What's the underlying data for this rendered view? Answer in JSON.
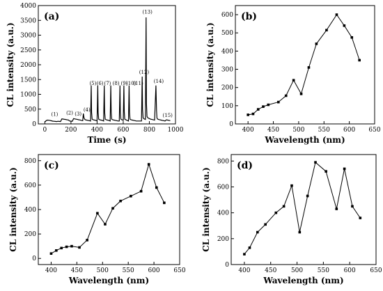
{
  "chart_data": [
    {
      "type": "line",
      "panel_label": "(a)",
      "xlabel": "Time (s)",
      "ylabel": "CL intensity (a.u.)",
      "xlim": [
        -50,
        1000
      ],
      "ylim": [
        0,
        4000
      ],
      "xticks": [
        0,
        200,
        400,
        600,
        800,
        1000
      ],
      "yticks": [
        0,
        500,
        1000,
        1500,
        2000,
        2500,
        3000,
        3500,
        4000
      ],
      "x": [
        0,
        10,
        20,
        30,
        40,
        50,
        60,
        70,
        80,
        90,
        100,
        110,
        120,
        130,
        140,
        150,
        160,
        170,
        180,
        190,
        200,
        210,
        220,
        230,
        240,
        250,
        260,
        270,
        280,
        290,
        295,
        300,
        305,
        310,
        320,
        330,
        340,
        350,
        355,
        358,
        362,
        370,
        380,
        390,
        400,
        405,
        408,
        412,
        420,
        430,
        440,
        450,
        455,
        458,
        462,
        470,
        480,
        490,
        500,
        505,
        508,
        512,
        520,
        530,
        540,
        550,
        560,
        570,
        575,
        578,
        582,
        590,
        600,
        605,
        608,
        612,
        620,
        630,
        640,
        645,
        648,
        652,
        660,
        670,
        680,
        690,
        700,
        710,
        720,
        730,
        740,
        745,
        748,
        752,
        760,
        770,
        775,
        778,
        782,
        790,
        800,
        810,
        820,
        830,
        840,
        850,
        855,
        858,
        862,
        870,
        880,
        890,
        900,
        910,
        920,
        930,
        940,
        950,
        960
      ],
      "values": [
        60,
        110,
        130,
        125,
        115,
        105,
        95,
        90,
        85,
        80,
        90,
        85,
        80,
        170,
        165,
        155,
        150,
        140,
        135,
        100,
        95,
        90,
        180,
        170,
        160,
        150,
        140,
        135,
        120,
        110,
        350,
        200,
        160,
        140,
        130,
        120,
        110,
        100,
        1300,
        400,
        160,
        140,
        130,
        120,
        100,
        1300,
        400,
        160,
        140,
        130,
        120,
        100,
        1300,
        400,
        160,
        140,
        130,
        120,
        100,
        1300,
        400,
        160,
        140,
        130,
        120,
        110,
        100,
        100,
        1300,
        400,
        160,
        140,
        120,
        1300,
        400,
        160,
        140,
        120,
        100,
        1300,
        400,
        160,
        140,
        130,
        120,
        110,
        100,
        100,
        100,
        100,
        100,
        1600,
        500,
        200,
        170,
        150,
        3600,
        700,
        250,
        200,
        180,
        160,
        150,
        140,
        130,
        1300,
        450,
        200,
        170,
        150,
        140,
        130,
        120,
        110,
        100,
        140,
        130,
        120,
        110
      ],
      "annotations": [
        {
          "text": "(1)",
          "x": 75,
          "y": 270
        },
        {
          "text": "(2)",
          "x": 190,
          "y": 320
        },
        {
          "text": "(3)",
          "x": 255,
          "y": 280
        },
        {
          "text": "(4)",
          "x": 322,
          "y": 420
        },
        {
          "text": "(5)",
          "x": 368,
          "y": 1320
        },
        {
          "text": "(6)",
          "x": 422,
          "y": 1320
        },
        {
          "text": "(7)",
          "x": 480,
          "y": 1320
        },
        {
          "text": "(8)",
          "x": 545,
          "y": 1320
        },
        {
          "text": "(9)",
          "x": 608,
          "y": 1320
        },
        {
          "text": "(10)",
          "x": 660,
          "y": 1320
        },
        {
          "text": "(11)",
          "x": 715,
          "y": 1320
        },
        {
          "text": "(12)",
          "x": 760,
          "y": 1690
        },
        {
          "text": "(13)",
          "x": 785,
          "y": 3730
        },
        {
          "text": "(14)",
          "x": 872,
          "y": 1390
        },
        {
          "text": "(15)",
          "x": 940,
          "y": 230
        }
      ]
    },
    {
      "type": "line",
      "panel_label": "(b)",
      "xlabel": "Wavelength (nm)",
      "ylabel": "CL intensity (a.u.)",
      "xlim": [
        375,
        650
      ],
      "ylim": [
        0,
        650
      ],
      "xticks": [
        400,
        450,
        500,
        550,
        600,
        650
      ],
      "yticks": [
        0,
        100,
        200,
        300,
        400,
        500,
        600
      ],
      "x": [
        400,
        410,
        420,
        430,
        440,
        460,
        475,
        490,
        505,
        520,
        535,
        555,
        575,
        590,
        605,
        620
      ],
      "values": [
        50,
        55,
        80,
        95,
        105,
        120,
        155,
        240,
        165,
        310,
        440,
        515,
        600,
        540,
        475,
        350
      ]
    },
    {
      "type": "line",
      "panel_label": "(c)",
      "xlabel": "Wavelength (nm)",
      "ylabel": "CL intensity (a.u.)",
      "xlim": [
        375,
        650
      ],
      "ylim": [
        -50,
        850
      ],
      "xticks": [
        400,
        450,
        500,
        550,
        600,
        650
      ],
      "yticks": [
        0,
        200,
        400,
        600,
        800
      ],
      "x": [
        400,
        410,
        420,
        430,
        440,
        455,
        470,
        490,
        505,
        520,
        535,
        555,
        575,
        590,
        605,
        620
      ],
      "values": [
        40,
        65,
        85,
        95,
        100,
        90,
        150,
        370,
        280,
        410,
        470,
        510,
        550,
        770,
        580,
        455
      ]
    },
    {
      "type": "line",
      "panel_label": "(d)",
      "xlabel": "Wavelength (nm)",
      "ylabel": "CL intensity (a.u.)",
      "xlim": [
        375,
        650
      ],
      "ylim": [
        0,
        850
      ],
      "xticks": [
        400,
        450,
        500,
        550,
        600,
        650
      ],
      "yticks": [
        0,
        200,
        400,
        600,
        800
      ],
      "x": [
        400,
        410,
        425,
        440,
        460,
        475,
        490,
        505,
        520,
        535,
        555,
        575,
        590,
        605,
        620
      ],
      "values": [
        80,
        130,
        250,
        310,
        400,
        450,
        610,
        250,
        530,
        790,
        720,
        430,
        740,
        450,
        360
      ]
    }
  ]
}
